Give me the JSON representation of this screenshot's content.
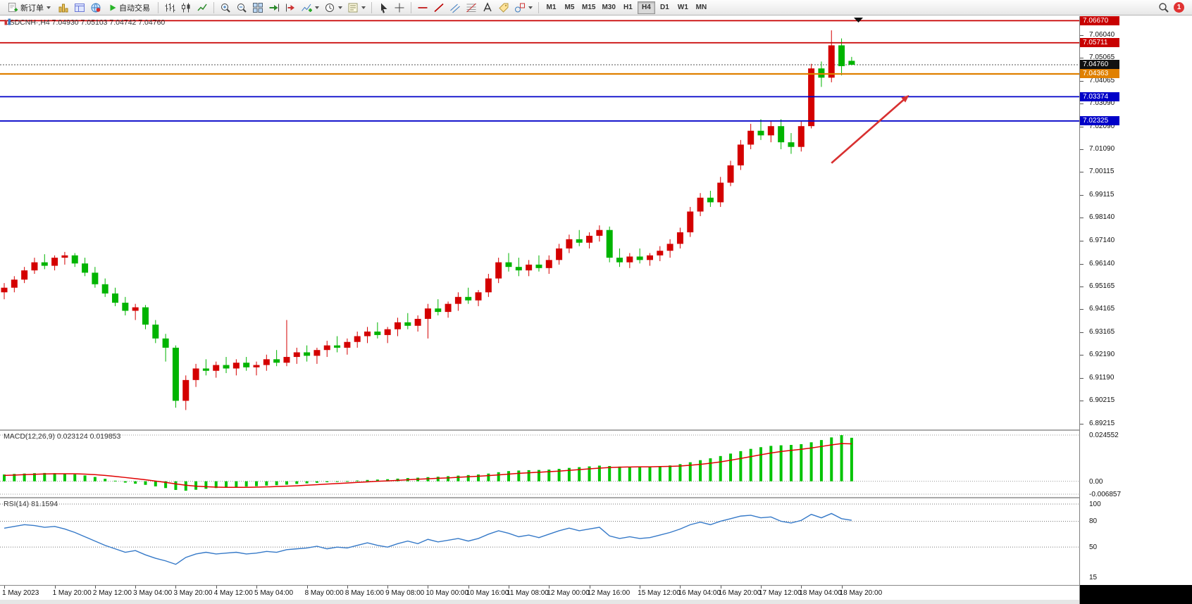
{
  "toolbar": {
    "new_order": "新订单",
    "auto_trading": "自动交易",
    "timeframes": [
      {
        "label": "M1",
        "active": false
      },
      {
        "label": "M5",
        "active": false
      },
      {
        "label": "M15",
        "active": false
      },
      {
        "label": "M30",
        "active": false
      },
      {
        "label": "H1",
        "active": false
      },
      {
        "label": "H4",
        "active": true
      },
      {
        "label": "D1",
        "active": false
      },
      {
        "label": "W1",
        "active": false
      },
      {
        "label": "MN",
        "active": false
      }
    ],
    "active_timeframe": "H4",
    "notification_count": "1"
  },
  "chart": {
    "symbol_ohlc": "USDCNH·,H4  7.04930 7.05103 7.04742 7.04760"
  },
  "chart_data": {
    "type": "candlestick",
    "symbol": "USDCNH",
    "timeframe": "H4",
    "ohlc_display": {
      "open": "7.04930",
      "high": "7.05103",
      "low": "7.04742",
      "close": "7.04760"
    },
    "price_range": [
      6.889,
      7.068
    ],
    "colors": {
      "up": "#d40000",
      "down": "#00b400",
      "macd_hist": "#00c400",
      "macd_signal": "#e00000",
      "rsi": "#3579c8"
    },
    "candles": [
      [
        6.949,
        6.953,
        6.946,
        6.951
      ],
      [
        6.951,
        6.956,
        6.949,
        6.9545
      ],
      [
        6.9545,
        6.96,
        6.953,
        6.9585
      ],
      [
        6.9585,
        6.964,
        6.957,
        6.962
      ],
      [
        6.962,
        6.9655,
        6.959,
        6.9605
      ],
      [
        6.9605,
        6.965,
        6.9585,
        6.964
      ],
      [
        6.964,
        6.9665,
        6.961,
        6.965
      ],
      [
        6.965,
        6.966,
        6.96,
        6.9615
      ],
      [
        6.9615,
        6.964,
        6.956,
        6.9575
      ],
      [
        6.9575,
        6.96,
        6.951,
        6.9525
      ],
      [
        6.9525,
        6.955,
        6.947,
        6.9485
      ],
      [
        6.9485,
        6.951,
        6.943,
        6.9445
      ],
      [
        6.9445,
        6.947,
        6.939,
        6.941
      ],
      [
        6.941,
        6.944,
        6.937,
        6.9425
      ],
      [
        6.9425,
        6.9435,
        6.933,
        6.935
      ],
      [
        6.935,
        6.937,
        6.927,
        6.929
      ],
      [
        6.929,
        6.931,
        6.919,
        6.925
      ],
      [
        6.925,
        6.926,
        6.899,
        6.902
      ],
      [
        6.902,
        6.913,
        6.898,
        6.911
      ],
      [
        6.911,
        6.918,
        6.908,
        6.916
      ],
      [
        6.916,
        6.92,
        6.913,
        6.915
      ],
      [
        6.915,
        6.919,
        6.912,
        6.9175
      ],
      [
        6.9175,
        6.921,
        6.914,
        6.916
      ],
      [
        6.916,
        6.92,
        6.913,
        6.9185
      ],
      [
        6.9185,
        6.921,
        6.915,
        6.9165
      ],
      [
        6.9165,
        6.919,
        6.913,
        6.9175
      ],
      [
        6.9175,
        6.922,
        6.915,
        6.92
      ],
      [
        6.92,
        6.924,
        6.917,
        6.9185
      ],
      [
        6.9185,
        6.937,
        6.917,
        6.921
      ],
      [
        6.921,
        6.925,
        6.918,
        6.923
      ],
      [
        6.923,
        6.926,
        6.919,
        6.9215
      ],
      [
        6.9215,
        6.925,
        6.918,
        6.924
      ],
      [
        6.924,
        6.928,
        6.921,
        6.926
      ],
      [
        6.926,
        6.93,
        6.923,
        6.925
      ],
      [
        6.925,
        6.929,
        6.922,
        6.9275
      ],
      [
        6.9275,
        6.932,
        6.925,
        6.93
      ],
      [
        6.93,
        6.934,
        6.927,
        6.932
      ],
      [
        6.932,
        6.936,
        6.929,
        6.9305
      ],
      [
        6.9305,
        6.934,
        6.927,
        6.933
      ],
      [
        6.933,
        6.938,
        6.93,
        6.936
      ],
      [
        6.936,
        6.94,
        6.933,
        6.9345
      ],
      [
        6.9345,
        6.939,
        6.932,
        6.9375
      ],
      [
        6.9375,
        6.944,
        6.929,
        6.942
      ],
      [
        6.942,
        6.946,
        6.939,
        6.9405
      ],
      [
        6.9405,
        6.945,
        6.938,
        6.944
      ],
      [
        6.944,
        6.949,
        6.941,
        6.947
      ],
      [
        6.947,
        6.951,
        6.944,
        6.9455
      ],
      [
        6.9455,
        6.95,
        6.943,
        6.949
      ],
      [
        6.949,
        6.957,
        6.947,
        6.955
      ],
      [
        6.955,
        6.964,
        6.953,
        6.962
      ],
      [
        6.962,
        6.966,
        6.958,
        6.96
      ],
      [
        6.96,
        6.964,
        6.956,
        6.9585
      ],
      [
        6.9585,
        6.963,
        6.956,
        6.961
      ],
      [
        6.961,
        6.965,
        6.958,
        6.9595
      ],
      [
        6.9595,
        6.965,
        6.957,
        6.963
      ],
      [
        6.963,
        6.97,
        6.961,
        6.968
      ],
      [
        6.968,
        6.974,
        6.966,
        6.972
      ],
      [
        6.972,
        6.976,
        6.969,
        6.9705
      ],
      [
        6.9705,
        6.975,
        6.968,
        6.9735
      ],
      [
        6.9735,
        6.978,
        6.971,
        6.976
      ],
      [
        6.976,
        6.9775,
        6.962,
        6.964
      ],
      [
        6.964,
        6.968,
        6.96,
        6.962
      ],
      [
        6.962,
        6.966,
        6.9595,
        6.9645
      ],
      [
        6.9645,
        6.968,
        6.9615,
        6.963
      ],
      [
        6.963,
        6.966,
        6.9605,
        6.965
      ],
      [
        6.965,
        6.969,
        6.9625,
        6.967
      ],
      [
        6.967,
        6.972,
        6.964,
        6.97
      ],
      [
        6.97,
        6.977,
        6.968,
        6.975
      ],
      [
        6.975,
        6.986,
        6.973,
        6.984
      ],
      [
        6.984,
        6.992,
        6.982,
        6.99
      ],
      [
        6.99,
        6.993,
        6.986,
        6.988
      ],
      [
        6.988,
        6.999,
        6.986,
        6.9965
      ],
      [
        6.9965,
        7.006,
        6.995,
        7.004
      ],
      [
        7.004,
        7.015,
        7.002,
        7.013
      ],
      [
        7.013,
        7.022,
        7.011,
        7.019
      ],
      [
        7.019,
        7.024,
        7.015,
        7.017
      ],
      [
        7.017,
        7.023,
        7.014,
        7.021
      ],
      [
        7.021,
        7.024,
        7.011,
        7.014
      ],
      [
        7.014,
        7.018,
        7.009,
        7.012
      ],
      [
        7.012,
        7.023,
        7.01,
        7.021
      ],
      [
        7.021,
        7.048,
        7.02,
        7.046
      ],
      [
        7.046,
        7.049,
        7.038,
        7.042
      ],
      [
        7.042,
        7.0625,
        7.04,
        7.056
      ],
      [
        7.056,
        7.059,
        7.043,
        7.047
      ],
      [
        7.0493,
        7.051,
        7.0474,
        7.0476
      ]
    ],
    "horizontal_lines": [
      {
        "price": 7.0667,
        "label": "7.06670",
        "color": "#c80000",
        "w": 1.8
      },
      {
        "price": 7.05711,
        "label": "7.05711",
        "color": "#c80000",
        "w": 1.8
      },
      {
        "price": 7.04363,
        "label": "7.04363",
        "color": "#e08000",
        "w": 2.2
      },
      {
        "price": 7.03374,
        "label": "7.03374",
        "color": "#0000c8",
        "w": 1.8
      },
      {
        "price": 7.02325,
        "label": "7.02325",
        "color": "#0000c8",
        "w": 1.8
      }
    ],
    "current_price": {
      "price": 7.0476,
      "label": "7.04760"
    },
    "annotations": [
      {
        "type": "arrow",
        "color": "#d83030",
        "from": {
          "bar": 82,
          "price": 7.005
        },
        "to": {
          "bar": 89.7,
          "price": 7.0345
        }
      }
    ],
    "price_axis_labels": [
      {
        "text": "7.06040",
        "price": 7.0604
      },
      {
        "text": "7.05065",
        "price": 7.05065
      },
      {
        "text": "7.04065",
        "price": 7.04065
      },
      {
        "text": "7.03090",
        "price": 7.0309
      },
      {
        "text": "7.02090",
        "price": 7.0209
      },
      {
        "text": "7.01090",
        "price": 7.0109
      },
      {
        "text": "7.00115",
        "price": 7.00115
      },
      {
        "text": "6.99115",
        "price": 6.99115
      },
      {
        "text": "6.98140",
        "price": 6.9814
      },
      {
        "text": "6.97140",
        "price": 6.9714
      },
      {
        "text": "6.96140",
        "price": 6.9614
      },
      {
        "text": "6.95165",
        "price": 6.95165
      },
      {
        "text": "6.94165",
        "price": 6.94165
      },
      {
        "text": "6.93165",
        "price": 6.93165
      },
      {
        "text": "6.92190",
        "price": 6.9219
      },
      {
        "text": "6.91190",
        "price": 6.9119
      },
      {
        "text": "6.90215",
        "price": 6.90215
      },
      {
        "text": "6.89215",
        "price": 6.89215
      }
    ],
    "macd": {
      "label": "MACD(12,26,9) 0.023124 0.019853",
      "scale": [
        {
          "text": "0.024552",
          "value": 0.024552
        },
        {
          "text": "0.00",
          "value": 0
        },
        {
          "text": "-0.006857",
          "value": -0.006857
        }
      ],
      "histogram": [
        0.0036,
        0.0039,
        0.0041,
        0.0043,
        0.0044,
        0.0043,
        0.0041,
        0.0037,
        0.0031,
        0.0023,
        0.0013,
        0.0003,
        -0.0007,
        -0.0013,
        -0.0019,
        -0.0027,
        -0.0036,
        -0.0046,
        -0.005,
        -0.0045,
        -0.004,
        -0.0036,
        -0.0033,
        -0.003,
        -0.0028,
        -0.0026,
        -0.0023,
        -0.0021,
        -0.0018,
        -0.0014,
        -0.0011,
        -0.0008,
        -0.0005,
        -0.0002,
        0.0001,
        0.0004,
        0.0007,
        0.0009,
        0.0011,
        0.0014,
        0.0017,
        0.0019,
        0.0022,
        0.0024,
        0.0027,
        0.003,
        0.0033,
        0.0036,
        0.0041,
        0.0048,
        0.0054,
        0.0057,
        0.0059,
        0.006,
        0.0062,
        0.0066,
        0.0071,
        0.0075,
        0.0079,
        0.0083,
        0.0081,
        0.0078,
        0.0076,
        0.0075,
        0.0076,
        0.0079,
        0.0084,
        0.0091,
        0.0101,
        0.0112,
        0.0122,
        0.0134,
        0.0147,
        0.016,
        0.0172,
        0.0181,
        0.0188,
        0.0191,
        0.0193,
        0.0197,
        0.0207,
        0.0219,
        0.0233,
        0.0245,
        0.0231
      ],
      "signal": [
        0.0031,
        0.0033,
        0.0035,
        0.0037,
        0.0039,
        0.004,
        0.004,
        0.004,
        0.0038,
        0.0035,
        0.0031,
        0.0026,
        0.002,
        0.0014,
        0.0008,
        0.0001,
        -0.0006,
        -0.0014,
        -0.0021,
        -0.0026,
        -0.0029,
        -0.0031,
        -0.0032,
        -0.0032,
        -0.0032,
        -0.0031,
        -0.003,
        -0.0028,
        -0.0026,
        -0.0024,
        -0.0021,
        -0.0018,
        -0.0015,
        -0.0012,
        -0.0009,
        -0.0006,
        -0.0003,
        0.0,
        0.0002,
        0.0005,
        0.0008,
        0.0011,
        0.0013,
        0.0016,
        0.0018,
        0.0021,
        0.0024,
        0.0027,
        0.003,
        0.0034,
        0.0038,
        0.0042,
        0.0045,
        0.0048,
        0.0051,
        0.0054,
        0.0058,
        0.0062,
        0.0066,
        0.007,
        0.0073,
        0.0075,
        0.0076,
        0.0077,
        0.0077,
        0.0078,
        0.0079,
        0.0081,
        0.0085,
        0.009,
        0.0096,
        0.0103,
        0.0112,
        0.0121,
        0.0131,
        0.0141,
        0.015,
        0.0158,
        0.0164,
        0.017,
        0.0177,
        0.0185,
        0.0193,
        0.02,
        0.0199
      ]
    },
    "rsi": {
      "label": "RSI(14) 81.1594",
      "levels": [
        {
          "text": "100",
          "value": 100,
          "line": true
        },
        {
          "text": "80",
          "value": 80,
          "line": true
        },
        {
          "text": "50",
          "value": 50,
          "line": true
        },
        {
          "text": "15",
          "value": 15,
          "line": false
        }
      ],
      "values": [
        72,
        74,
        76,
        75,
        73,
        74,
        71,
        67,
        62,
        57,
        52,
        48,
        44,
        46,
        41,
        37,
        34,
        30,
        38,
        42,
        44,
        42,
        43,
        44,
        42,
        43,
        45,
        44,
        47,
        48,
        49,
        51,
        48,
        50,
        49,
        52,
        55,
        52,
        50,
        54,
        57,
        54,
        59,
        56,
        58,
        60,
        57,
        60,
        65,
        69,
        66,
        62,
        64,
        61,
        65,
        69,
        72,
        69,
        71,
        73,
        63,
        60,
        62,
        60,
        61,
        64,
        67,
        71,
        76,
        79,
        76,
        80,
        83,
        86,
        87,
        84,
        85,
        80,
        78,
        81,
        88,
        84,
        89,
        83,
        81.16
      ]
    },
    "time_labels": [
      {
        "text": "1 May 2023",
        "bar": 0
      },
      {
        "text": "1 May 20:00",
        "bar": 5
      },
      {
        "text": "2 May 12:00",
        "bar": 9
      },
      {
        "text": "3 May 04:00",
        "bar": 13
      },
      {
        "text": "3 May 20:00",
        "bar": 17
      },
      {
        "text": "4 May 12:00",
        "bar": 21
      },
      {
        "text": "5 May 04:00",
        "bar": 25
      },
      {
        "text": "8 May 00:00",
        "bar": 30
      },
      {
        "text": "8 May 16:00",
        "bar": 34
      },
      {
        "text": "9 May 08:00",
        "bar": 38
      },
      {
        "text": "10 May 00:00",
        "bar": 42
      },
      {
        "text": "10 May 16:00",
        "bar": 46
      },
      {
        "text": "11 May 08:00",
        "bar": 50
      },
      {
        "text": "12 May 00:00",
        "bar": 54
      },
      {
        "text": "12 May 16:00",
        "bar": 58
      },
      {
        "text": "15 May 12:00",
        "bar": 63
      },
      {
        "text": "16 May 04:00",
        "bar": 67
      },
      {
        "text": "16 May 20:00",
        "bar": 71
      },
      {
        "text": "17 May 12:00",
        "bar": 75
      },
      {
        "text": "18 May 04:00",
        "bar": 79
      },
      {
        "text": "18 May 20:00",
        "bar": 83
      }
    ]
  }
}
